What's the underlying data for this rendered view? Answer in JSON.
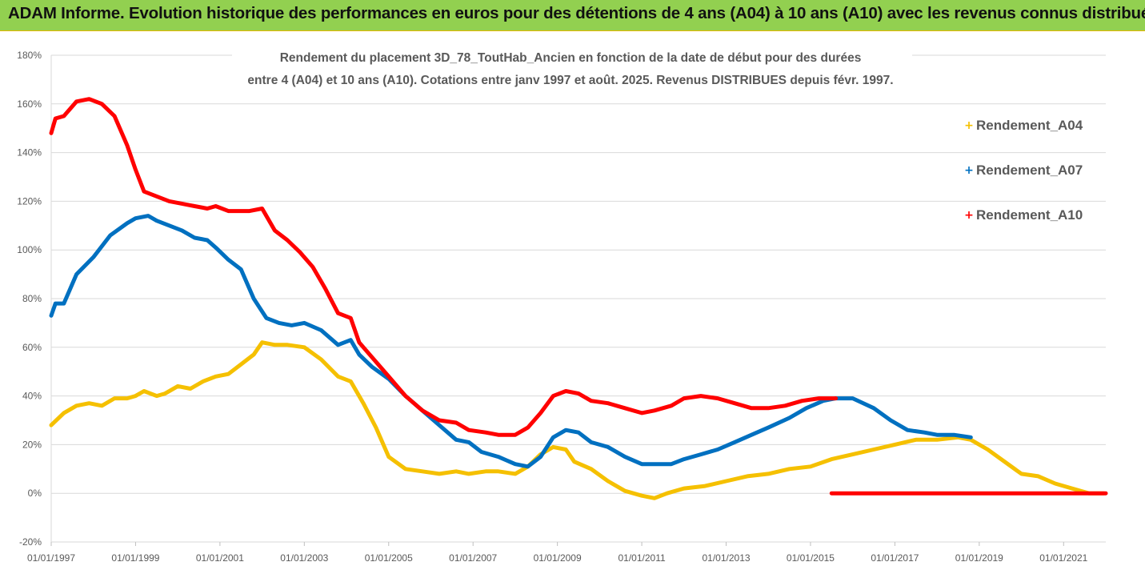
{
  "banner": {
    "title": "ADAM Informe. Evolution historique des performances en euros pour des détentions de 4 ans (A04) à 10 ans (A10) avec les revenus connus distribués",
    "color": "#92d050"
  },
  "chart_data": {
    "type": "line",
    "title_line1": "Rendement du placement 3D_78_ToutHab_Ancien en fonction de la date de début pour des durées",
    "title_line2": "entre 4 (A04) et 10 ans (A10). Cotations entre janv 1997 et août. 2025. Revenus DISTRIBUES depuis févr. 1997.",
    "x_ticks": [
      "01/01/1997",
      "01/01/1999",
      "01/01/2001",
      "01/01/2003",
      "01/01/2005",
      "01/01/2007",
      "01/01/2009",
      "01/01/2011",
      "01/01/2013",
      "01/01/2015",
      "01/01/2017",
      "01/01/2019",
      "01/01/2021"
    ],
    "y_ticks": [
      "-20%",
      "0%",
      "20%",
      "40%",
      "60%",
      "80%",
      "100%",
      "120%",
      "140%",
      "160%",
      "180%"
    ],
    "xlim": [
      1997.0,
      2022.0
    ],
    "ylim": [
      -20,
      180
    ],
    "grid": "horizontal",
    "legend_position": "right",
    "series": [
      {
        "name": "Rendement_A04",
        "color": "#f5c000",
        "x": [
          1997.0,
          1997.3,
          1997.6,
          1997.9,
          1998.2,
          1998.5,
          1998.8,
          1999.0,
          1999.2,
          1999.5,
          1999.7,
          2000.0,
          2000.3,
          2000.6,
          2000.9,
          2001.2,
          2001.5,
          2001.8,
          2002.0,
          2002.3,
          2002.6,
          2003.0,
          2003.4,
          2003.8,
          2004.1,
          2004.4,
          2004.7,
          2005.0,
          2005.4,
          2005.8,
          2006.2,
          2006.6,
          2006.9,
          2007.3,
          2007.6,
          2008.0,
          2008.3,
          2008.6,
          2008.9,
          2009.2,
          2009.4,
          2009.8,
          2010.2,
          2010.6,
          2011.0,
          2011.3,
          2011.6,
          2012.0,
          2012.5,
          2013.0,
          2013.5,
          2014.0,
          2014.5,
          2015.0,
          2015.5,
          2016.0,
          2016.5,
          2017.0,
          2017.5,
          2018.0,
          2018.5,
          2018.8,
          2019.2,
          2019.6,
          2020.0,
          2020.4,
          2020.8,
          2021.2,
          2021.6,
          2021.95
        ],
        "values": [
          28,
          33,
          36,
          37,
          36,
          39,
          39,
          40,
          42,
          40,
          41,
          44,
          43,
          46,
          48,
          49,
          53,
          57,
          62,
          61,
          61,
          60,
          55,
          48,
          46,
          37,
          27,
          15,
          10,
          9,
          8,
          9,
          8,
          9,
          9,
          8,
          11,
          16,
          19,
          18,
          13,
          10,
          5,
          1,
          -1,
          -2,
          0,
          2,
          3,
          5,
          7,
          8,
          10,
          11,
          14,
          16,
          18,
          20,
          22,
          22,
          23,
          22,
          18,
          13,
          8,
          7,
          4,
          2,
          0,
          0
        ]
      },
      {
        "name": "Rendement_A07",
        "color": "#0070c0",
        "x": [
          1997.0,
          1997.1,
          1997.3,
          1997.6,
          1998.0,
          1998.4,
          1998.8,
          1999.0,
          1999.3,
          1999.5,
          1999.8,
          2000.1,
          2000.4,
          2000.7,
          2000.9,
          2001.2,
          2001.5,
          2001.8,
          2002.1,
          2002.4,
          2002.7,
          2003.0,
          2003.4,
          2003.8,
          2004.1,
          2004.3,
          2004.6,
          2005.0,
          2005.4,
          2005.8,
          2006.2,
          2006.6,
          2006.9,
          2007.2,
          2007.6,
          2008.0,
          2008.3,
          2008.6,
          2008.9,
          2009.2,
          2009.5,
          2009.8,
          2010.2,
          2010.6,
          2011.0,
          2011.3,
          2011.7,
          2012.0,
          2012.4,
          2012.8,
          2013.2,
          2013.6,
          2014.0,
          2014.5,
          2014.9,
          2015.3,
          2015.6,
          2016.0,
          2016.5,
          2016.9,
          2017.3,
          2017.7,
          2018.0,
          2018.4,
          2018.8
        ],
        "values": [
          73,
          78,
          78,
          90,
          97,
          106,
          111,
          113,
          114,
          112,
          110,
          108,
          105,
          104,
          101,
          96,
          92,
          80,
          72,
          70,
          69,
          70,
          67,
          61,
          63,
          57,
          52,
          47,
          40,
          34,
          28,
          22,
          21,
          17,
          15,
          12,
          11,
          15,
          23,
          26,
          25,
          21,
          19,
          15,
          12,
          12,
          12,
          14,
          16,
          18,
          21,
          24,
          27,
          31,
          35,
          38,
          39,
          39,
          35,
          30,
          26,
          25,
          24,
          24,
          23
        ]
      },
      {
        "name": "Rendement_A10",
        "color": "#ff0000",
        "x": [
          1997.0,
          1997.1,
          1997.3,
          1997.6,
          1997.9,
          1998.2,
          1998.5,
          1998.8,
          1999.0,
          1999.2,
          1999.5,
          1999.8,
          2000.1,
          2000.4,
          2000.7,
          2000.9,
          2001.2,
          2001.4,
          2001.7,
          2002.0,
          2002.3,
          2002.6,
          2002.9,
          2003.2,
          2003.5,
          2003.8,
          2004.1,
          2004.3,
          2004.6,
          2005.0,
          2005.4,
          2005.8,
          2006.2,
          2006.6,
          2006.9,
          2007.3,
          2007.6,
          2008.0,
          2008.3,
          2008.6,
          2008.9,
          2009.2,
          2009.5,
          2009.8,
          2010.2,
          2010.6,
          2011.0,
          2011.3,
          2011.7,
          2012.0,
          2012.4,
          2012.8,
          2013.2,
          2013.6,
          2014.0,
          2014.4,
          2014.8,
          2015.2,
          2015.6
        ],
        "values": [
          148,
          154,
          155,
          161,
          162,
          160,
          155,
          143,
          133,
          124,
          122,
          120,
          119,
          118,
          117,
          118,
          116,
          116,
          116,
          117,
          108,
          104,
          99,
          93,
          84,
          74,
          72,
          62,
          56,
          48,
          40,
          34,
          30,
          29,
          26,
          25,
          24,
          24,
          27,
          33,
          40,
          42,
          41,
          38,
          37,
          35,
          33,
          34,
          36,
          39,
          40,
          39,
          37,
          35,
          35,
          36,
          38,
          39,
          39
        ]
      },
      {
        "name": "",
        "color": "#ff0000",
        "x": [
          2015.5,
          2022.0
        ],
        "values": [
          0,
          0
        ]
      }
    ]
  }
}
